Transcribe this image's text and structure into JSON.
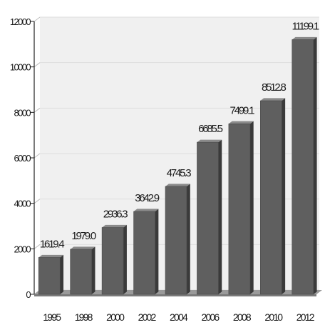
{
  "chart_data": {
    "type": "bar",
    "categories": [
      "1995",
      "1998",
      "2000",
      "2002",
      "2004",
      "2006",
      "2008",
      "2010",
      "2012"
    ],
    "values": [
      1619.4,
      1979.0,
      2936.3,
      3642.9,
      4745.3,
      6685.5,
      7499.1,
      8512.8,
      11199.1
    ],
    "data_labels": [
      "1619.4",
      "1979.0",
      "2936.3",
      "3642.9",
      "4745.3",
      "6685.5",
      "7499.1",
      "8512.8",
      "11199.1"
    ],
    "y_ticks": [
      "0",
      "2000",
      "4000",
      "6000",
      "8000",
      "10000",
      "12000"
    ],
    "ylim": [
      0,
      12000
    ],
    "title": "",
    "xlabel": "",
    "ylabel": "",
    "grid": true,
    "legend": "none",
    "colors": {
      "bar_front": "#5f5f5f",
      "bar_side": "#3a3a3a",
      "bar_top": "#8a8a8a",
      "wall": "#f0f0f0",
      "floor": "#9a9a9a",
      "grid": "#dedede"
    }
  }
}
